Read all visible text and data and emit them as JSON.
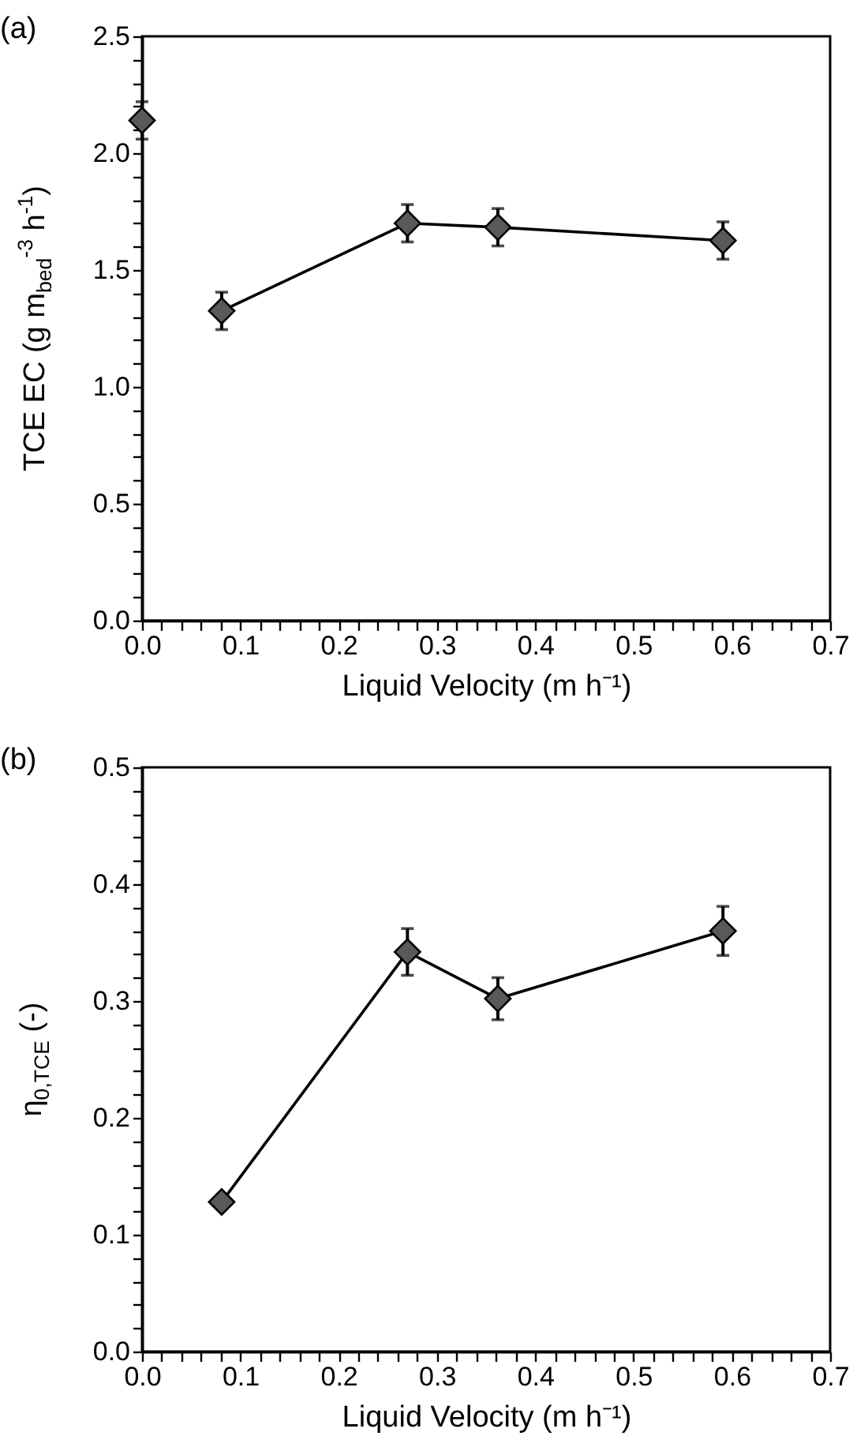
{
  "chart_data": [
    {
      "type": "line",
      "title": "(a)",
      "xlabel": "Liquid Velocity (m h⁻¹)",
      "ylabel": "TCE EC (g m$_{bed}$$^{-3}$ h$^{-1}$)",
      "series": [
        {
          "type": "scatter",
          "color": "#595959",
          "x": [
            0.0
          ],
          "values": [
            2.14
          ],
          "errors": [
            0.08
          ]
        },
        {
          "type": "line",
          "color": "#595959",
          "x": [
            0.081,
            0.27,
            0.362,
            0.591
          ],
          "values": [
            1.325,
            1.7,
            1.683,
            1.626
          ],
          "errors": [
            0.08,
            0.08,
            0.08,
            0.08
          ]
        }
      ],
      "marker": "diamond",
      "line_style": "solid",
      "grid": false,
      "xlim": [
        0,
        0.7
      ],
      "ylim": [
        0,
        2.5
      ],
      "xticks": [
        {
          "value": 0,
          "label": "0.0"
        },
        {
          "value": 0.02,
          "label": null
        },
        {
          "value": 0.04,
          "label": null
        },
        {
          "value": 0.06,
          "label": null
        },
        {
          "value": 0.08,
          "label": null
        },
        0.1,
        {
          "value": 0.12,
          "label": null
        },
        {
          "value": 0.14,
          "label": null
        },
        {
          "value": 0.16,
          "label": null
        },
        {
          "value": 0.18,
          "label": null
        },
        0.2,
        {
          "value": 0.22,
          "label": null
        },
        {
          "value": 0.24,
          "label": null
        },
        {
          "value": 0.26,
          "label": null
        },
        {
          "value": 0.28,
          "label": null
        },
        0.3,
        {
          "value": 0.32,
          "label": null
        },
        {
          "value": 0.34,
          "label": null
        },
        {
          "value": 0.36,
          "label": null
        },
        {
          "value": 0.38,
          "label": null
        },
        0.4,
        {
          "value": 0.42,
          "label": null
        },
        {
          "value": 0.44,
          "label": null
        },
        {
          "value": 0.46,
          "label": null
        },
        {
          "value": 0.48,
          "label": null
        },
        0.5,
        {
          "value": 0.52,
          "label": null
        },
        {
          "value": 0.54,
          "label": null
        },
        {
          "value": 0.56,
          "label": null
        },
        {
          "value": 0.58,
          "label": null
        },
        0.6,
        {
          "value": 0.62,
          "label": null
        },
        {
          "value": 0.64,
          "label": null
        },
        {
          "value": 0.66,
          "label": null
        },
        {
          "value": 0.68,
          "label": null
        },
        0.7
      ],
      "yticks": [
        {
          "value": 0,
          "label": "0.0"
        },
        {
          "value": 0.1,
          "label": null
        },
        {
          "value": 0.2,
          "label": null
        },
        {
          "value": 0.3,
          "label": null
        },
        {
          "value": 0.4,
          "label": null
        },
        0.5,
        {
          "value": 0.6,
          "label": null
        },
        {
          "value": 0.7,
          "label": null
        },
        {
          "value": 0.8,
          "label": null
        },
        {
          "value": 0.9,
          "label": null
        },
        {
          "value": 1,
          "label": "1.0"
        },
        {
          "value": 1.1,
          "label": null
        },
        {
          "value": 1.2,
          "label": null
        },
        {
          "value": 1.3,
          "label": null
        },
        {
          "value": 1.4,
          "label": null
        },
        1.5,
        {
          "value": 1.6,
          "label": null
        },
        {
          "value": 1.7,
          "label": null
        },
        {
          "value": 1.8,
          "label": null
        },
        {
          "value": 1.9,
          "label": null
        },
        {
          "value": 2,
          "label": "2.0"
        },
        {
          "value": 2.1,
          "label": null
        },
        {
          "value": 2.2,
          "label": null
        },
        {
          "value": 2.3,
          "label": null
        },
        {
          "value": 2.4,
          "label": null
        },
        2.5
      ]
    },
    {
      "type": "line",
      "title": "(b)",
      "xlabel": "Liquid Velocity (m h⁻¹)",
      "ylabel": "η$_{0,TCE}$ (-)",
      "series": [
        {
          "type": "line",
          "color": "#595959",
          "x": [
            0.081,
            0.27,
            0.362,
            0.591
          ],
          "values": [
            0.128,
            0.342,
            0.302,
            0.36
          ],
          "errors": [
            null,
            0.02,
            0.018,
            0.021
          ]
        }
      ],
      "marker": "diamond",
      "line_style": "solid",
      "grid": false,
      "xlim": [
        0,
        0.7
      ],
      "ylim": [
        0,
        0.5
      ],
      "xticks": [
        {
          "value": 0,
          "label": "0.0"
        },
        {
          "value": 0.02,
          "label": null
        },
        {
          "value": 0.04,
          "label": null
        },
        {
          "value": 0.06,
          "label": null
        },
        {
          "value": 0.08,
          "label": null
        },
        0.1,
        {
          "value": 0.12,
          "label": null
        },
        {
          "value": 0.14,
          "label": null
        },
        {
          "value": 0.16,
          "label": null
        },
        {
          "value": 0.18,
          "label": null
        },
        0.2,
        {
          "value": 0.22,
          "label": null
        },
        {
          "value": 0.24,
          "label": null
        },
        {
          "value": 0.26,
          "label": null
        },
        {
          "value": 0.28,
          "label": null
        },
        0.3,
        {
          "value": 0.32,
          "label": null
        },
        {
          "value": 0.34,
          "label": null
        },
        {
          "value": 0.36,
          "label": null
        },
        {
          "value": 0.38,
          "label": null
        },
        0.4,
        {
          "value": 0.42,
          "label": null
        },
        {
          "value": 0.44,
          "label": null
        },
        {
          "value": 0.46,
          "label": null
        },
        {
          "value": 0.48,
          "label": null
        },
        0.5,
        {
          "value": 0.52,
          "label": null
        },
        {
          "value": 0.54,
          "label": null
        },
        {
          "value": 0.56,
          "label": null
        },
        {
          "value": 0.58,
          "label": null
        },
        0.6,
        {
          "value": 0.62,
          "label": null
        },
        {
          "value": 0.64,
          "label": null
        },
        {
          "value": 0.66,
          "label": null
        },
        {
          "value": 0.68,
          "label": null
        },
        0.7
      ],
      "yticks": [
        {
          "value": 0,
          "label": "0.0"
        },
        {
          "value": 0.02,
          "label": null
        },
        {
          "value": 0.04,
          "label": null
        },
        {
          "value": 0.06,
          "label": null
        },
        {
          "value": 0.08,
          "label": null
        },
        0.1,
        {
          "value": 0.12,
          "label": null
        },
        {
          "value": 0.14,
          "label": null
        },
        {
          "value": 0.16,
          "label": null
        },
        {
          "value": 0.18,
          "label": null
        },
        0.2,
        {
          "value": 0.22,
          "label": null
        },
        {
          "value": 0.24,
          "label": null
        },
        {
          "value": 0.26,
          "label": null
        },
        {
          "value": 0.28,
          "label": null
        },
        0.3,
        {
          "value": 0.32,
          "label": null
        },
        {
          "value": 0.34,
          "label": null
        },
        {
          "value": 0.36,
          "label": null
        },
        {
          "value": 0.38,
          "label": null
        },
        0.4,
        {
          "value": 0.42,
          "label": null
        },
        {
          "value": 0.44,
          "label": null
        },
        {
          "value": 0.46,
          "label": null
        },
        {
          "value": 0.48,
          "label": null
        },
        0.5
      ]
    }
  ]
}
